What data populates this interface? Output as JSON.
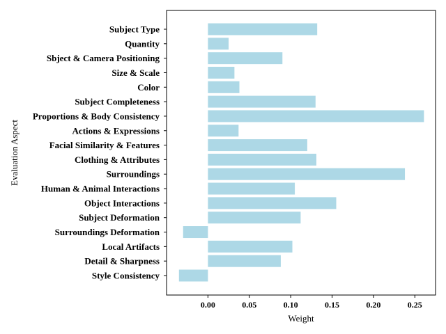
{
  "chart_data": {
    "type": "bar",
    "orientation": "horizontal",
    "xlabel": "Weight",
    "ylabel": "Evaluation Aspect",
    "xlim": [
      -0.05,
      0.275
    ],
    "xticks": [
      0.0,
      0.05,
      0.1,
      0.15,
      0.2,
      0.25
    ],
    "xtick_labels": [
      "0.00",
      "0.05",
      "0.10",
      "0.15",
      "0.20",
      "0.25"
    ],
    "bar_color": "#add8e6",
    "categories": [
      "Subject Type",
      "Quantity",
      "Sbject & Camera Positioning",
      "Size & Scale",
      "Color",
      "Subject Completeness",
      "Proportions & Body Consistency",
      "Actions & Expressions",
      "Facial Similarity & Features",
      "Clothing & Attributes",
      "Surroundings",
      "Human & Animal Interactions",
      "Object Interactions",
      "Subject Deformation",
      "Surroundings Deformation",
      "Local Artifacts",
      "Detail & Sharpness",
      "Style Consistency"
    ],
    "values": [
      0.132,
      0.025,
      0.09,
      0.032,
      0.038,
      0.13,
      0.261,
      0.037,
      0.12,
      0.131,
      0.238,
      0.105,
      0.155,
      0.112,
      -0.03,
      0.102,
      0.088,
      -0.035
    ]
  }
}
